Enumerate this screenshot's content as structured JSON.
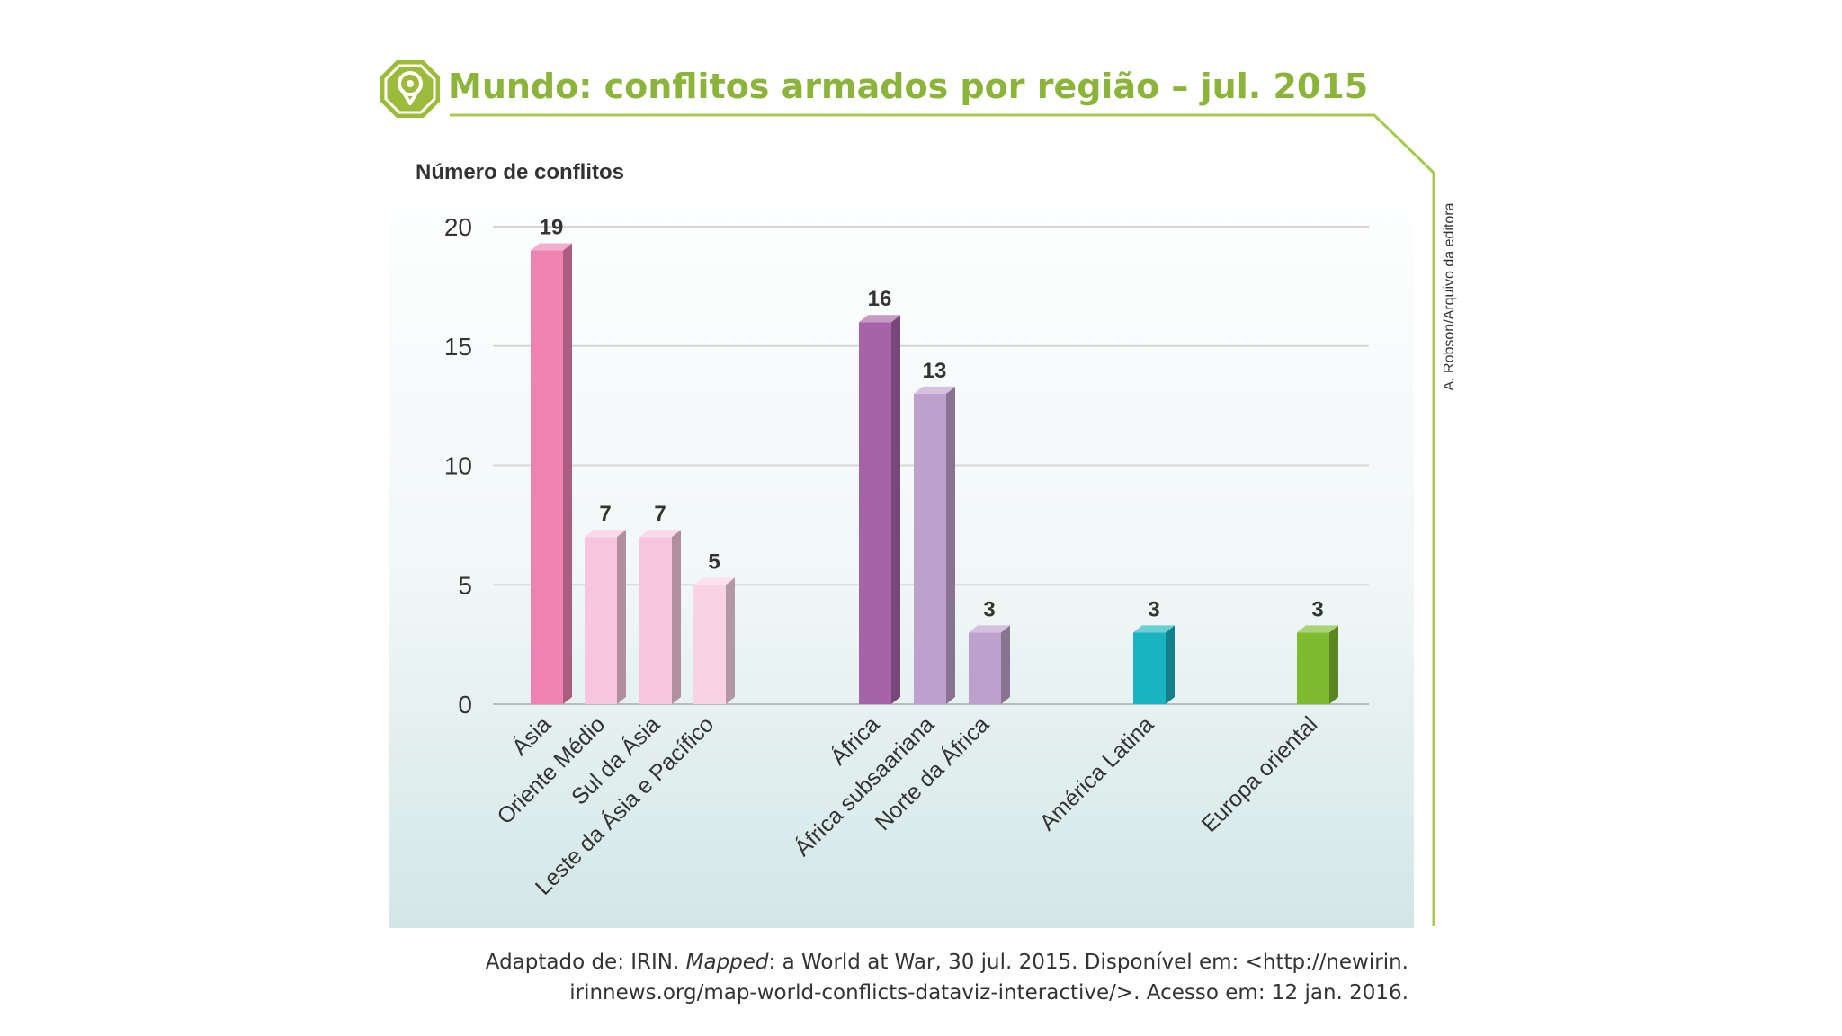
{
  "title": "Mundo: conflitos armados por região – jul. 2015",
  "credit": "A. Robson/Arquivo da editora",
  "source": {
    "line1_prefix": "Adaptado de: IRIN. ",
    "line1_italic": "Mapped",
    "line1_suffix": ": a World at War, 30 jul. 2015. Disponível em: <http://newirin.",
    "line2": "irinnews.org/map-world-conflicts-dataviz-interactive/>. Acesso em: 12 jan. 2016."
  },
  "colors": {
    "title": "#8cb33a",
    "frame_line": "#a9c94a",
    "badge": "#9dbb3a",
    "plot_bg_top": "#ffffff",
    "plot_bg_bottom": "#d3e6e6",
    "grid": "#d6d6d6"
  },
  "chart_data": {
    "type": "bar",
    "title": "Mundo: conflitos armados por região – jul. 2015",
    "ylabel": "Número de conflitos",
    "xlabel": "",
    "ylim": [
      0,
      20
    ],
    "yticks": [
      0,
      5,
      10,
      15,
      20
    ],
    "grid": true,
    "categories": [
      "Ásia",
      "Oriente Médio",
      "Sul da Ásia",
      "Leste da Ásia e Pacífico",
      "África",
      "África subsaariana",
      "Norte da África",
      "América Latina",
      "Europa oriental"
    ],
    "values": [
      19,
      7,
      7,
      5,
      16,
      13,
      3,
      3,
      3
    ],
    "value_labels": [
      "19",
      "7",
      "7",
      "5",
      "16",
      "13",
      "3",
      "3",
      "3"
    ],
    "bar_colors": [
      "#ee82b2",
      "#f7c6dd",
      "#f7c6dd",
      "#f9d3e4",
      "#a663a8",
      "#bda0cc",
      "#bda0cc",
      "#1ab3c2",
      "#7ebb2e"
    ],
    "groups": [
      "Ásia",
      "Ásia",
      "Ásia",
      "Ásia",
      "África",
      "África",
      "África",
      "América Latina",
      "Europa oriental"
    ]
  }
}
